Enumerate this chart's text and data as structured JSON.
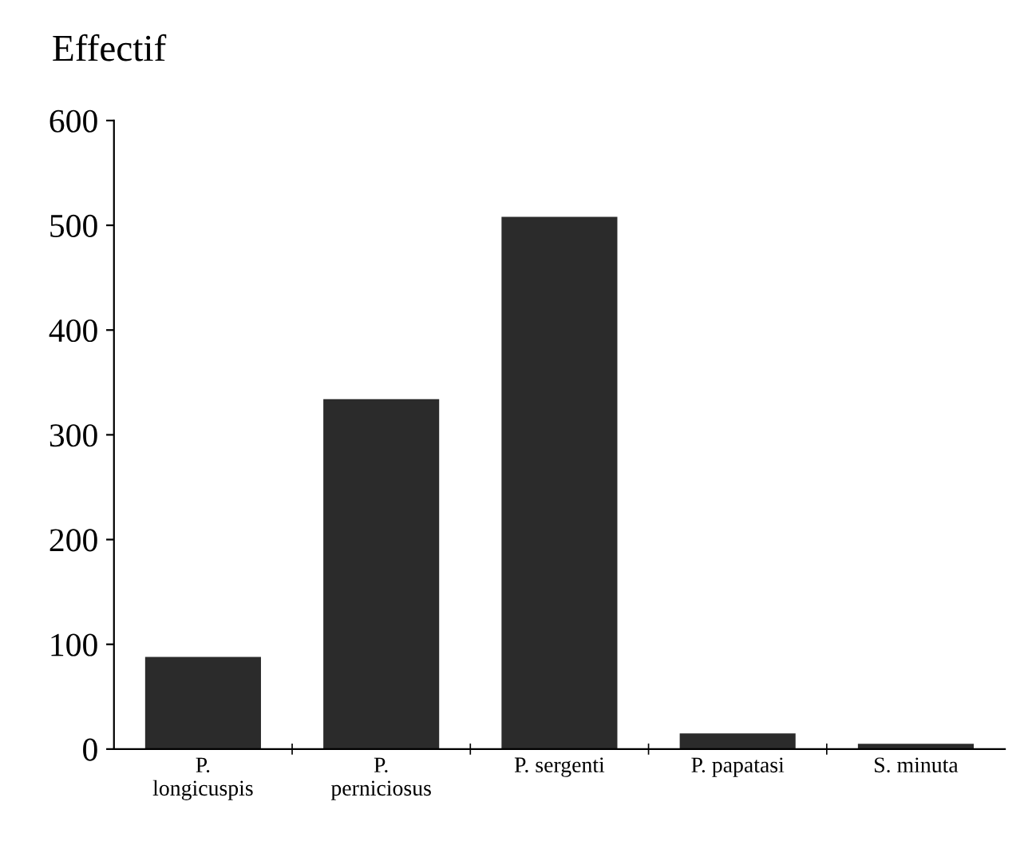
{
  "chart_data": {
    "type": "bar",
    "ylabel": "Effectif",
    "categories": [
      "P.\nlongicuspis",
      "P.\nperniciosus",
      "P. sergenti",
      "P. papatasi",
      "S. minuta"
    ],
    "values": [
      88,
      334,
      508,
      15,
      5
    ],
    "color": "#2b2b2b",
    "ylim": [
      0,
      600
    ],
    "yticks": [
      0,
      100,
      200,
      300,
      400,
      500,
      600
    ],
    "grid": false,
    "legend": false
  }
}
